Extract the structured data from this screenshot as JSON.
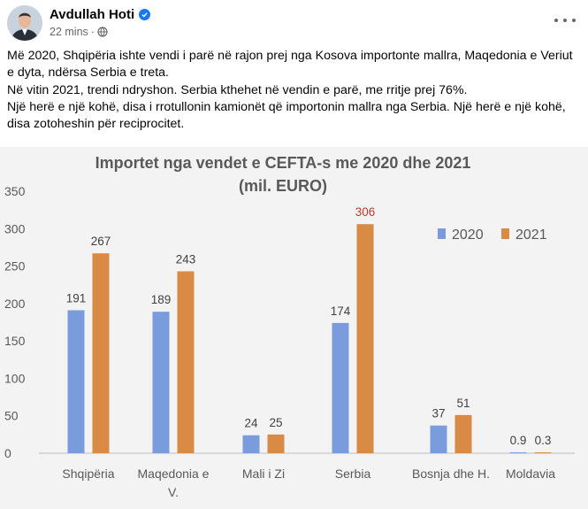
{
  "post": {
    "author": "Avdullah Hoti",
    "time": "22 mins",
    "text_lines": [
      "Më 2020, Shqipëria ishte vendi i parë në rajon prej nga Kosova importonte mallra, Maqedonia e Veriut e dyta, ndërsa Serbia e treta.",
      "Në vitin 2021, trendi ndryshon. Serbia kthehet në vendin e parë, me rritje prej 76%.",
      "Një herë e një kohë, disa i rrotullonin kamionët që importonin mallra nga Serbia. Një herë e një kohë, disa zotoheshin për reciprocitet."
    ]
  },
  "icons": {
    "verified": "verified-badge-icon",
    "privacy": "globe-icon",
    "more": "more-options-icon"
  },
  "chart_data": {
    "type": "bar",
    "title_line1": "Importet nga vendet e CEFTA-s me 2020 dhe 2021",
    "title_line2": "(mil. EURO)",
    "categories": [
      [
        "Shqipëria"
      ],
      [
        "Maqedonia e",
        "V."
      ],
      [
        "Mali i Zi"
      ],
      [
        "Serbia"
      ],
      [
        "Bosnja dhe H."
      ],
      [
        "Moldavia"
      ]
    ],
    "series": [
      {
        "name": "2020",
        "color": "#7a9bdc",
        "values": [
          191,
          189,
          24,
          174,
          37,
          0.9
        ],
        "labels": [
          "191",
          "189",
          "24",
          "174",
          "37",
          "0.9"
        ]
      },
      {
        "name": "2021",
        "color": "#d98a44",
        "values": [
          267,
          243,
          25,
          306,
          51,
          0.3
        ],
        "labels": [
          "267",
          "243",
          "25",
          "306",
          "51",
          "0.3"
        ]
      }
    ],
    "highlight_color": "#c0392b",
    "highlight_label": {
      "series": 1,
      "index": 3
    },
    "yticks": [
      "350",
      "300",
      "250",
      "200",
      "150",
      "100",
      "50",
      "0"
    ],
    "ylim": [
      0,
      350
    ],
    "grid": false,
    "legend_position": "right"
  }
}
